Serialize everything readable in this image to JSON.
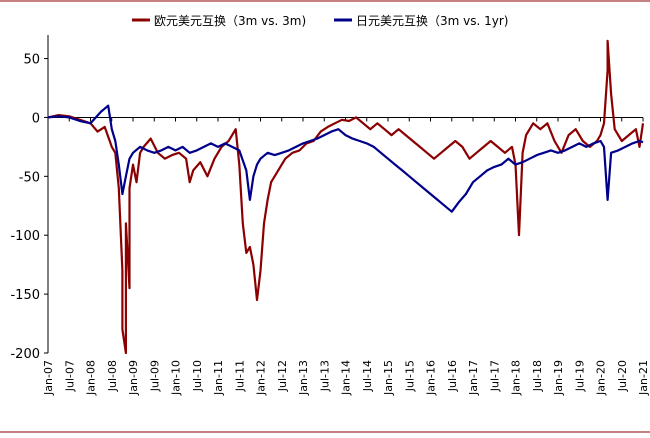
{
  "chart_data": {
    "type": "line",
    "title": "",
    "xlabel": "",
    "ylabel": "",
    "ylim": [
      -200,
      70
    ],
    "y_ticks": [
      50,
      0,
      -50,
      -100,
      -150,
      -200
    ],
    "x_tick_labels": [
      "Jan-07",
      "Jul-07",
      "Jan-08",
      "Jul-08",
      "Jan-09",
      "Jul-09",
      "Jan-10",
      "Jul-10",
      "Jan-11",
      "Jul-11",
      "Jan-12",
      "Jul-12",
      "Jan-13",
      "Jul-13",
      "Jan-14",
      "Jul-14",
      "Jan-15",
      "Jul-15",
      "Jan-16",
      "Jul-16",
      "Jan-17",
      "Jul-17",
      "Jan-18",
      "Jul-18",
      "Jan-19",
      "Jul-19",
      "Jan-20",
      "Jul-20",
      "Jan-21"
    ],
    "xlim": [
      "2007-01",
      "2021-01"
    ],
    "grid": false,
    "legend_position": "top",
    "series": [
      {
        "name": "欧元美元互换（3m vs. 3m)",
        "color": "#8B0000",
        "points": [
          [
            "2007-01",
            0
          ],
          [
            "2007-04",
            2
          ],
          [
            "2007-07",
            1
          ],
          [
            "2007-10",
            -2
          ],
          [
            "2008-01",
            -5
          ],
          [
            "2008-03",
            -12
          ],
          [
            "2008-05",
            -8
          ],
          [
            "2008-07",
            -25
          ],
          [
            "2008-08",
            -30
          ],
          [
            "2008-09",
            -60
          ],
          [
            "2008-10",
            -130
          ],
          [
            "2008-10",
            -180
          ],
          [
            "2008-11",
            -200
          ],
          [
            "2008-11",
            -90
          ],
          [
            "2008-12",
            -145
          ],
          [
            "2008-12",
            -60
          ],
          [
            "2009-01",
            -40
          ],
          [
            "2009-02",
            -55
          ],
          [
            "2009-03",
            -30
          ],
          [
            "2009-04",
            -25
          ],
          [
            "2009-06",
            -18
          ],
          [
            "2009-08",
            -30
          ],
          [
            "2009-10",
            -35
          ],
          [
            "2009-12",
            -32
          ],
          [
            "2010-02",
            -30
          ],
          [
            "2010-04",
            -35
          ],
          [
            "2010-05",
            -55
          ],
          [
            "2010-06",
            -45
          ],
          [
            "2010-08",
            -38
          ],
          [
            "2010-10",
            -50
          ],
          [
            "2010-12",
            -35
          ],
          [
            "2011-02",
            -25
          ],
          [
            "2011-04",
            -20
          ],
          [
            "2011-06",
            -10
          ],
          [
            "2011-07",
            -40
          ],
          [
            "2011-08",
            -90
          ],
          [
            "2011-09",
            -115
          ],
          [
            "2011-10",
            -110
          ],
          [
            "2011-11",
            -125
          ],
          [
            "2011-12",
            -155
          ],
          [
            "2012-01",
            -130
          ],
          [
            "2012-02",
            -90
          ],
          [
            "2012-03",
            -70
          ],
          [
            "2012-04",
            -55
          ],
          [
            "2012-06",
            -45
          ],
          [
            "2012-08",
            -35
          ],
          [
            "2012-10",
            -30
          ],
          [
            "2012-12",
            -28
          ],
          [
            "2013-02",
            -22
          ],
          [
            "2013-04",
            -20
          ],
          [
            "2013-06",
            -12
          ],
          [
            "2013-08",
            -8
          ],
          [
            "2013-10",
            -5
          ],
          [
            "2013-12",
            -2
          ],
          [
            "2014-02",
            -3
          ],
          [
            "2014-04",
            0
          ],
          [
            "2014-06",
            -5
          ],
          [
            "2014-08",
            -10
          ],
          [
            "2014-10",
            -5
          ],
          [
            "2014-12",
            -10
          ],
          [
            "2015-02",
            -15
          ],
          [
            "2015-04",
            -10
          ],
          [
            "2015-06",
            -15
          ],
          [
            "2015-08",
            -20
          ],
          [
            "2015-10",
            -25
          ],
          [
            "2015-12",
            -30
          ],
          [
            "2016-02",
            -35
          ],
          [
            "2016-04",
            -30
          ],
          [
            "2016-06",
            -25
          ],
          [
            "2016-08",
            -20
          ],
          [
            "2016-10",
            -25
          ],
          [
            "2016-12",
            -35
          ],
          [
            "2017-02",
            -30
          ],
          [
            "2017-04",
            -25
          ],
          [
            "2017-06",
            -20
          ],
          [
            "2017-08",
            -25
          ],
          [
            "2017-10",
            -30
          ],
          [
            "2017-12",
            -25
          ],
          [
            "2018-01",
            -40
          ],
          [
            "2018-02",
            -100
          ],
          [
            "2018-03",
            -30
          ],
          [
            "2018-04",
            -15
          ],
          [
            "2018-06",
            -5
          ],
          [
            "2018-08",
            -10
          ],
          [
            "2018-10",
            -5
          ],
          [
            "2018-12",
            -20
          ],
          [
            "2019-02",
            -30
          ],
          [
            "2019-04",
            -15
          ],
          [
            "2019-06",
            -10
          ],
          [
            "2019-08",
            -20
          ],
          [
            "2019-10",
            -25
          ],
          [
            "2019-12",
            -20
          ],
          [
            "2020-01",
            -15
          ],
          [
            "2020-02",
            -5
          ],
          [
            "2020-03",
            40
          ],
          [
            "2020-03",
            65
          ],
          [
            "2020-04",
            20
          ],
          [
            "2020-05",
            -10
          ],
          [
            "2020-07",
            -20
          ],
          [
            "2020-09",
            -15
          ],
          [
            "2020-11",
            -10
          ],
          [
            "2020-12",
            -25
          ],
          [
            "2021-01",
            -5
          ]
        ]
      },
      {
        "name": "日元美元互换（3m vs. 1yr)",
        "color": "#00008B",
        "points": [
          [
            "2007-01",
            0
          ],
          [
            "2007-04",
            1
          ],
          [
            "2007-07",
            0
          ],
          [
            "2007-10",
            -3
          ],
          [
            "2008-01",
            -5
          ],
          [
            "2008-04",
            5
          ],
          [
            "2008-06",
            10
          ],
          [
            "2008-07",
            -10
          ],
          [
            "2008-08",
            -20
          ],
          [
            "2008-09",
            -40
          ],
          [
            "2008-10",
            -65
          ],
          [
            "2008-11",
            -50
          ],
          [
            "2008-12",
            -35
          ],
          [
            "2009-01",
            -30
          ],
          [
            "2009-03",
            -25
          ],
          [
            "2009-05",
            -28
          ],
          [
            "2009-07",
            -30
          ],
          [
            "2009-09",
            -28
          ],
          [
            "2009-11",
            -25
          ],
          [
            "2010-01",
            -28
          ],
          [
            "2010-03",
            -25
          ],
          [
            "2010-05",
            -30
          ],
          [
            "2010-07",
            -28
          ],
          [
            "2010-09",
            -25
          ],
          [
            "2010-11",
            -22
          ],
          [
            "2011-01",
            -25
          ],
          [
            "2011-03",
            -22
          ],
          [
            "2011-05",
            -25
          ],
          [
            "2011-07",
            -28
          ],
          [
            "2011-09",
            -45
          ],
          [
            "2011-10",
            -70
          ],
          [
            "2011-11",
            -50
          ],
          [
            "2011-12",
            -40
          ],
          [
            "2012-01",
            -35
          ],
          [
            "2012-03",
            -30
          ],
          [
            "2012-05",
            -32
          ],
          [
            "2012-07",
            -30
          ],
          [
            "2012-09",
            -28
          ],
          [
            "2012-11",
            -25
          ],
          [
            "2013-01",
            -22
          ],
          [
            "2013-03",
            -20
          ],
          [
            "2013-05",
            -18
          ],
          [
            "2013-07",
            -15
          ],
          [
            "2013-09",
            -12
          ],
          [
            "2013-11",
            -10
          ],
          [
            "2014-01",
            -15
          ],
          [
            "2014-03",
            -18
          ],
          [
            "2014-05",
            -20
          ],
          [
            "2014-07",
            -22
          ],
          [
            "2014-09",
            -25
          ],
          [
            "2014-11",
            -30
          ],
          [
            "2015-01",
            -35
          ],
          [
            "2015-03",
            -40
          ],
          [
            "2015-05",
            -45
          ],
          [
            "2015-07",
            -50
          ],
          [
            "2015-09",
            -55
          ],
          [
            "2015-11",
            -60
          ],
          [
            "2016-01",
            -65
          ],
          [
            "2016-03",
            -70
          ],
          [
            "2016-05",
            -75
          ],
          [
            "2016-07",
            -80
          ],
          [
            "2016-09",
            -72
          ],
          [
            "2016-11",
            -65
          ],
          [
            "2017-01",
            -55
          ],
          [
            "2017-03",
            -50
          ],
          [
            "2017-05",
            -45
          ],
          [
            "2017-07",
            -42
          ],
          [
            "2017-09",
            -40
          ],
          [
            "2017-11",
            -35
          ],
          [
            "2018-01",
            -40
          ],
          [
            "2018-03",
            -38
          ],
          [
            "2018-05",
            -35
          ],
          [
            "2018-07",
            -32
          ],
          [
            "2018-09",
            -30
          ],
          [
            "2018-11",
            -28
          ],
          [
            "2019-01",
            -30
          ],
          [
            "2019-03",
            -28
          ],
          [
            "2019-05",
            -25
          ],
          [
            "2019-07",
            -22
          ],
          [
            "2019-09",
            -25
          ],
          [
            "2019-11",
            -22
          ],
          [
            "2020-01",
            -20
          ],
          [
            "2020-02",
            -25
          ],
          [
            "2020-03",
            -70
          ],
          [
            "2020-04",
            -30
          ],
          [
            "2020-06",
            -28
          ],
          [
            "2020-08",
            -25
          ],
          [
            "2020-10",
            -22
          ],
          [
            "2020-12",
            -20
          ],
          [
            "2021-01",
            -21
          ]
        ]
      }
    ]
  }
}
